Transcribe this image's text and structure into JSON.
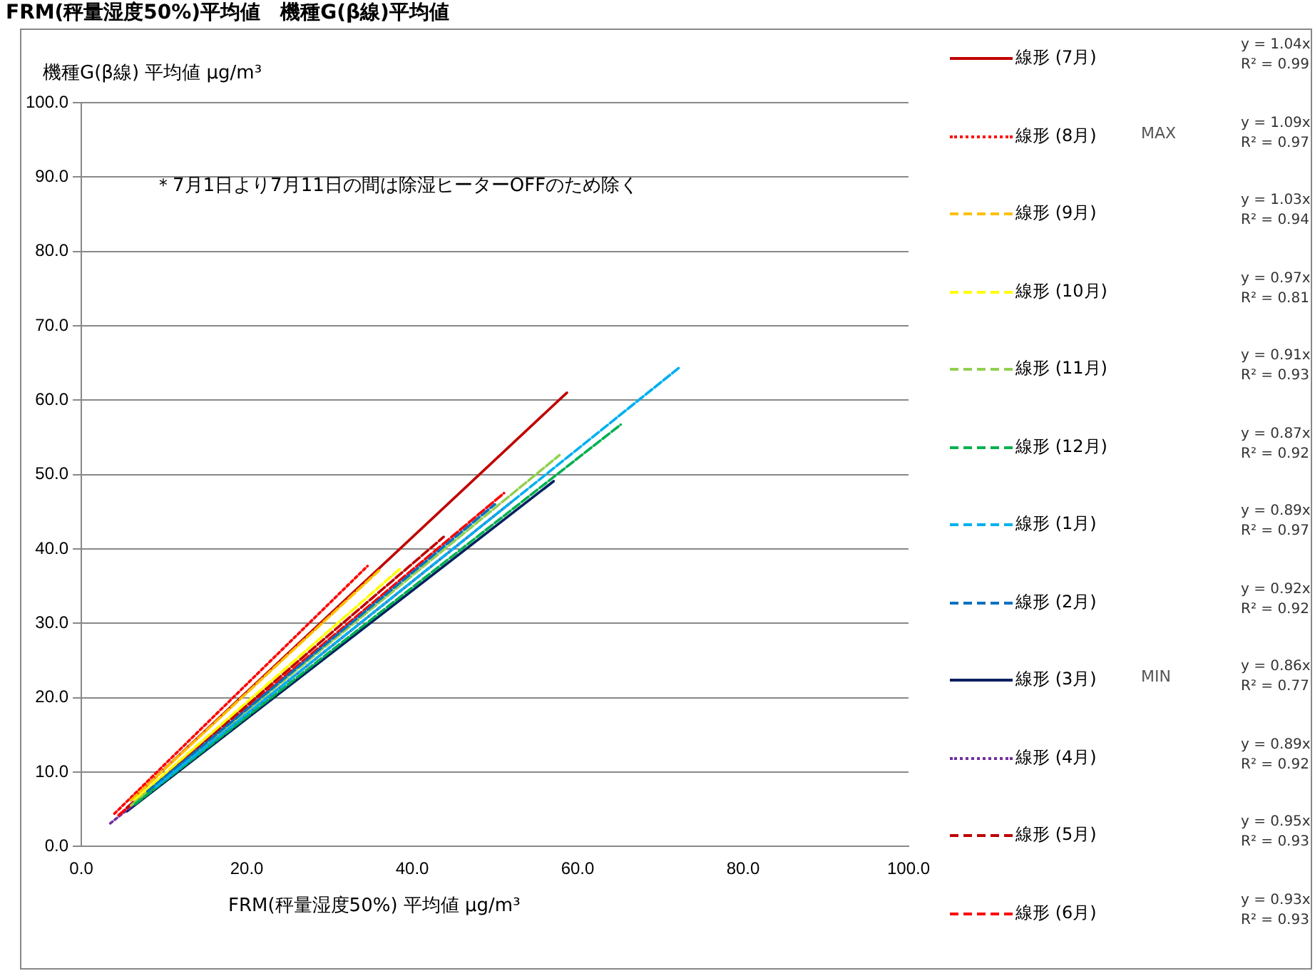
{
  "chart_data": {
    "type": "line",
    "title": "FRM(秤量湿度50%)平均値　機種G(β線)平均値",
    "xlabel": "FRM(秤量湿度50%) 平均値 μg/m³",
    "ylabel": "機種G(β線) 平均値 μg/m³",
    "xlim": [
      0,
      100
    ],
    "xticks": [
      {
        "value": 0,
        "label": "0.0"
      },
      {
        "value": 20,
        "label": "20.0"
      },
      {
        "value": 40,
        "label": "40.0"
      },
      {
        "value": 60,
        "label": "60.0"
      },
      {
        "value": 80,
        "label": "80.0"
      },
      {
        "value": 100,
        "label": "100.0"
      }
    ],
    "ylim": [
      0,
      100
    ],
    "yticks": [
      {
        "value": 0,
        "label": "0.0"
      },
      {
        "value": 10,
        "label": "10.0"
      },
      {
        "value": 20,
        "label": "20.0"
      },
      {
        "value": 30,
        "label": "30.0"
      },
      {
        "value": 40,
        "label": "40.0"
      },
      {
        "value": 50,
        "label": "50.0"
      },
      {
        "value": 60,
        "label": "60.0"
      },
      {
        "value": 70,
        "label": "70.0"
      },
      {
        "value": 80,
        "label": "80.0"
      },
      {
        "value": 90,
        "label": "90.0"
      },
      {
        "value": 100,
        "label": "100.0"
      }
    ],
    "grid": "y",
    "legend": "right",
    "marker": "none",
    "annotations": [
      "＊7月1日より7月11日の間は除湿ヒーターOFFのため除く",
      "y = 1.04x\nR² = 0.99",
      "y = 1.09x\nR² = 0.97",
      "y = 1.03x\nR² = 0.94",
      "y = 0.97x\nR² = 0.81",
      "y = 0.91x\nR² = 0.93",
      "y = 0.87x\nR² = 0.92",
      "y = 0.89x\nR² = 0.97",
      "y = 0.92x\nR² = 0.92",
      "y = 0.86x\nR² = 0.77",
      "y = 0.89x\nR² = 0.92",
      "y = 0.95x\nR² = 0.93",
      "y = 0.93x\nR² = 0.93",
      "MAX",
      "MIN"
    ],
    "series": [
      {
        "name": "線形 (7月)",
        "color": "#c00000",
        "line_style": "solid",
        "x": [
          6,
          58.7
        ],
        "values": [
          6.2,
          61
        ]
      },
      {
        "name": "線形 (8月)",
        "color": "#ff0000",
        "line_style": "dotted",
        "x": [
          4,
          34.6
        ],
        "values": [
          4.4,
          37.7
        ]
      },
      {
        "name": "線形 (9月)",
        "color": "#ffc000",
        "line_style": "dashed",
        "x": [
          6,
          36
        ],
        "values": [
          6.2,
          37.1
        ]
      },
      {
        "name": "線形 (10月)",
        "color": "#ffff00",
        "line_style": "dashed",
        "x": [
          6.5,
          38.5
        ],
        "values": [
          6.3,
          37.3
        ]
      },
      {
        "name": "線形 (11月)",
        "color": "#92d050",
        "line_style": "dashed",
        "x": [
          6,
          57.8
        ],
        "values": [
          5.5,
          52.6
        ]
      },
      {
        "name": "線形 (12月)",
        "color": "#00b050",
        "line_style": "dashed",
        "x": [
          6.5,
          65.2
        ],
        "values": [
          5.7,
          56.7
        ]
      },
      {
        "name": "線形 (1月)",
        "color": "#00b0f0",
        "line_style": "dashed",
        "x": [
          9,
          72.2
        ],
        "values": [
          8,
          64.3
        ]
      },
      {
        "name": "線形 (2月)",
        "color": "#0070c0",
        "line_style": "dashed",
        "x": [
          8,
          50
        ],
        "values": [
          7.4,
          46
        ]
      },
      {
        "name": "線形 (3月)",
        "color": "#002060",
        "line_style": "solid",
        "x": [
          5.5,
          57.1
        ],
        "values": [
          4.7,
          49.1
        ]
      },
      {
        "name": "線形 (4月)",
        "color": "#7030a0",
        "line_style": "dotted",
        "x": [
          3.5,
          52
        ],
        "values": [
          3.1,
          46.3
        ]
      },
      {
        "name": "線形 (5月)",
        "color": "#c00000",
        "line_style": "dashed",
        "x": [
          5.5,
          43.8
        ],
        "values": [
          5.2,
          41.6
        ]
      },
      {
        "name": "線形 (6月)",
        "color": "#ff0000",
        "line_style": "dashed",
        "x": [
          4.5,
          51.1
        ],
        "values": [
          4.2,
          47.5
        ]
      }
    ]
  }
}
